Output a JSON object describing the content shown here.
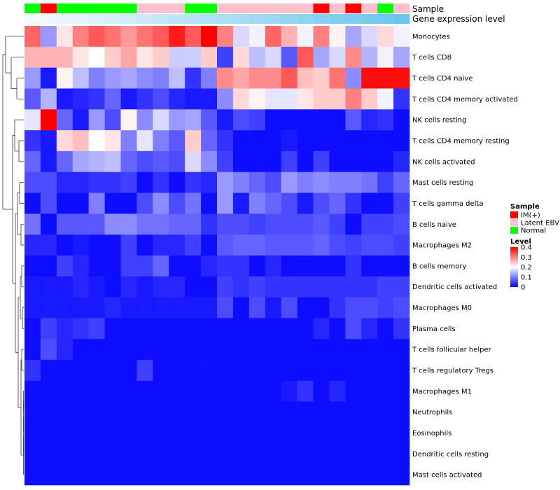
{
  "chart_data": {
    "type": "heatmap",
    "colorscale": {
      "low": "#0000ff",
      "mid": "#ffffff",
      "high": "#ff0000",
      "min": 0,
      "mid_value": 0.2,
      "max": 0.4
    },
    "annotations": {
      "sample": {
        "label": "Sample",
        "values": [
          "Normal",
          "IM(+)",
          "Normal",
          "Normal",
          "Normal",
          "Normal",
          "Normal",
          "Latent EBV",
          "Latent EBV",
          "Latent EBV",
          "Normal",
          "Normal",
          "Latent EBV",
          "Latent EBV",
          "Latent EBV",
          "Latent EBV",
          "Latent EBV",
          "Latent EBV",
          "IM(+)",
          "Latent EBV",
          "IM(+)",
          "Latent EBV",
          "Normal",
          "Latent EBV"
        ]
      },
      "expression": {
        "label": "Gene expression level",
        "colors": [
          "#f4fafd",
          "#eef8fc",
          "#e8f5fc",
          "#e2f3fb",
          "#dcf1fb",
          "#d6eefa",
          "#d0ecf9",
          "#caeaf9",
          "#c4e7f8",
          "#bee5f7",
          "#b8e3f7",
          "#b2e0f6",
          "#acdef5",
          "#a6dcf5",
          "#a0d9f4",
          "#9ad7f3",
          "#94d5f3",
          "#8ed2f2",
          "#88d0f1",
          "#82cef1",
          "#7ccbf0",
          "#76c9ef",
          "#70c7ef",
          "#6ac4ee"
        ]
      }
    },
    "rows": [
      "Monocytes",
      "T cells CD8",
      "T cells CD4 naive",
      "T cells CD4 memory activated",
      "NK cells resting",
      "T cells CD4 memory resting",
      "NK cells activated",
      "Mast cells resting",
      "T cells gamma delta",
      "B cells naive",
      "Macrophages M2",
      "B cells memory",
      "Dendritic cells activated",
      "Macrophages M0",
      "Plasma cells",
      "T cells follicular helper",
      "T cells regulatory  Tregs",
      "Macrophages M1",
      "Neutrophils",
      "Eosinophils",
      "Dendritic cells resting",
      "Mast cells activated"
    ],
    "values": [
      [
        0.32,
        0.12,
        0.22,
        0.3,
        0.33,
        0.31,
        0.28,
        0.31,
        0.33,
        0.38,
        0.33,
        0.4,
        0.3,
        0.17,
        0.19,
        0.32,
        0.26,
        0.19,
        0.3,
        0.21,
        0.13,
        0.17,
        0.23,
        0.19
      ],
      [
        0.26,
        0.26,
        0.26,
        0.22,
        0.2,
        0.24,
        0.27,
        0.22,
        0.24,
        0.16,
        0.16,
        0.24,
        0.05,
        0.23,
        0.15,
        0.17,
        0.07,
        0.33,
        0.13,
        0.17,
        0.29,
        0.14,
        0.19,
        0.13
      ],
      [
        0.12,
        0.02,
        0.21,
        0.15,
        0.1,
        0.12,
        0.13,
        0.11,
        0.1,
        0.15,
        0.04,
        0.1,
        0.29,
        0.27,
        0.29,
        0.29,
        0.33,
        0.25,
        0.24,
        0.31,
        0.11,
        0.39,
        0.39,
        0.39
      ],
      [
        0.07,
        0.14,
        0.02,
        0.03,
        0.04,
        0.08,
        0.02,
        0.04,
        0.06,
        0.03,
        0.02,
        0.02,
        0.11,
        0.23,
        0.21,
        0.18,
        0.18,
        0.22,
        0.24,
        0.24,
        0.3,
        0.24,
        0.19,
        0.04
      ],
      [
        0.18,
        0.4,
        0.08,
        0.02,
        0.12,
        0.06,
        0.21,
        0.11,
        0.17,
        0.12,
        0.13,
        0.07,
        0.02,
        0.06,
        0.05,
        0.01,
        0.01,
        0.01,
        0.01,
        0.01,
        0.07,
        0.03,
        0.04,
        0.01
      ],
      [
        0.04,
        0.02,
        0.23,
        0.25,
        0.2,
        0.22,
        0.1,
        0.18,
        0.1,
        0.07,
        0.24,
        0.08,
        0.04,
        0.01,
        0.01,
        0.01,
        0.02,
        0.01,
        0.01,
        0.01,
        0.01,
        0.01,
        0.01,
        0.01
      ],
      [
        0.08,
        0.02,
        0.08,
        0.13,
        0.14,
        0.15,
        0.08,
        0.06,
        0.07,
        0.06,
        0.17,
        0.11,
        0.05,
        0.01,
        0.01,
        0.01,
        0.05,
        0.01,
        0.05,
        0.01,
        0.01,
        0.01,
        0.01,
        0.03
      ],
      [
        0.06,
        0.06,
        0.03,
        0.03,
        0.04,
        0.04,
        0.05,
        0.01,
        0.04,
        0.01,
        0.04,
        0.03,
        0.12,
        0.1,
        0.08,
        0.06,
        0.12,
        0.1,
        0.11,
        0.1,
        0.1,
        0.09,
        0.05,
        0.08
      ],
      [
        0.01,
        0.06,
        0.01,
        0.01,
        0.1,
        0.01,
        0.01,
        0.06,
        0.11,
        0.06,
        0.09,
        0.01,
        0.12,
        0.02,
        0.1,
        0.08,
        0.06,
        0.02,
        0.06,
        0.08,
        0.04,
        0.01,
        0.01,
        0.05
      ],
      [
        0.09,
        0.01,
        0.07,
        0.07,
        0.07,
        0.11,
        0.11,
        0.09,
        0.09,
        0.08,
        0.08,
        0.04,
        0.06,
        0.06,
        0.05,
        0.06,
        0.06,
        0.06,
        0.07,
        0.05,
        0.01,
        0.05,
        0.05,
        0.06
      ],
      [
        0.03,
        0.03,
        0.01,
        0.02,
        0.01,
        0.01,
        0.05,
        0.01,
        0.03,
        0.03,
        0.05,
        0.01,
        0.07,
        0.08,
        0.08,
        0.07,
        0.07,
        0.07,
        0.08,
        0.06,
        0.05,
        0.06,
        0.06,
        0.05
      ],
      [
        0.01,
        0.01,
        0.05,
        0.03,
        0.01,
        0.01,
        0.05,
        0.05,
        0.08,
        0.01,
        0.01,
        0.03,
        0.04,
        0.04,
        0.01,
        0.03,
        0.01,
        0.01,
        0.01,
        0.01,
        0.04,
        0.01,
        0.01,
        0.01
      ],
      [
        0.02,
        0.02,
        0.02,
        0.03,
        0.02,
        0.01,
        0.03,
        0.02,
        0.03,
        0.03,
        0.01,
        0.01,
        0.05,
        0.04,
        0.05,
        0.04,
        0.04,
        0.04,
        0.04,
        0.04,
        0.04,
        0.04,
        0.05,
        0.05
      ],
      [
        0.02,
        0.02,
        0.02,
        0.02,
        0.02,
        0.03,
        0.02,
        0.02,
        0.02,
        0.02,
        0.02,
        0.02,
        0.06,
        0.01,
        0.06,
        0.02,
        0.06,
        0.01,
        0.01,
        0.04,
        0.06,
        0.06,
        0.05,
        0.06
      ],
      [
        0.01,
        0.05,
        0.03,
        0.04,
        0.05,
        0.01,
        0.01,
        0.01,
        0.01,
        0.01,
        0.01,
        0.01,
        0.01,
        0.01,
        0.01,
        0.01,
        0.01,
        0.01,
        0.03,
        0.01,
        0.06,
        0.03,
        0.01,
        0.04
      ],
      [
        0.01,
        0.06,
        0.03,
        0.01,
        0.01,
        0.01,
        0.01,
        0.01,
        0.01,
        0.01,
        0.01,
        0.01,
        0.01,
        0.01,
        0.01,
        0.01,
        0.01,
        0.01,
        0.01,
        0.01,
        0.01,
        0.01,
        0.01,
        0.01
      ],
      [
        0.04,
        0.01,
        0.01,
        0.01,
        0.01,
        0.01,
        0.01,
        0.05,
        0.01,
        0.01,
        0.01,
        0.01,
        0.01,
        0.01,
        0.01,
        0.01,
        0.01,
        0.01,
        0.01,
        0.01,
        0.01,
        0.01,
        0.01,
        0.01
      ],
      [
        0.01,
        0.01,
        0.01,
        0.01,
        0.01,
        0.01,
        0.01,
        0.01,
        0.01,
        0.01,
        0.01,
        0.01,
        0.01,
        0.01,
        0.01,
        0.01,
        0.02,
        0.04,
        0.01,
        0.03,
        0.01,
        0.01,
        0.01,
        0.01
      ],
      [
        0.01,
        0.01,
        0.01,
        0.01,
        0.01,
        0.01,
        0.01,
        0.01,
        0.01,
        0.01,
        0.01,
        0.01,
        0.01,
        0.01,
        0.01,
        0.01,
        0.01,
        0.01,
        0.01,
        0.01,
        0.01,
        0.01,
        0.01,
        0.01
      ],
      [
        0.01,
        0.01,
        0.01,
        0.01,
        0.01,
        0.01,
        0.01,
        0.01,
        0.01,
        0.01,
        0.01,
        0.01,
        0.01,
        0.01,
        0.01,
        0.01,
        0.01,
        0.01,
        0.01,
        0.01,
        0.01,
        0.01,
        0.01,
        0.01
      ],
      [
        0.01,
        0.01,
        0.01,
        0.01,
        0.01,
        0.01,
        0.01,
        0.01,
        0.01,
        0.01,
        0.01,
        0.01,
        0.01,
        0.01,
        0.01,
        0.01,
        0.01,
        0.01,
        0.01,
        0.01,
        0.01,
        0.01,
        0.01,
        0.01
      ],
      [
        0.01,
        0.01,
        0.01,
        0.01,
        0.01,
        0.01,
        0.01,
        0.01,
        0.01,
        0.01,
        0.01,
        0.01,
        0.01,
        0.01,
        0.01,
        0.01,
        0.01,
        0.01,
        0.01,
        0.01,
        0.01,
        0.01,
        0.01,
        0.01
      ]
    ],
    "legend": {
      "sample_title": "Sample",
      "sample_items": [
        {
          "label": "IM(+)",
          "color": "#ff0000"
        },
        {
          "label": "Latent EBV",
          "color": "#ffc0cb"
        },
        {
          "label": "Normal",
          "color": "#00ff00"
        }
      ],
      "level_title": "Level",
      "level_ticks": [
        "0.4",
        "0.3",
        "0.2",
        "0.1",
        "0"
      ],
      "level_tick_values": [
        0.4,
        0.3,
        0.2,
        0.1,
        0
      ],
      "placement": "right"
    },
    "dendrogram": "rows"
  }
}
